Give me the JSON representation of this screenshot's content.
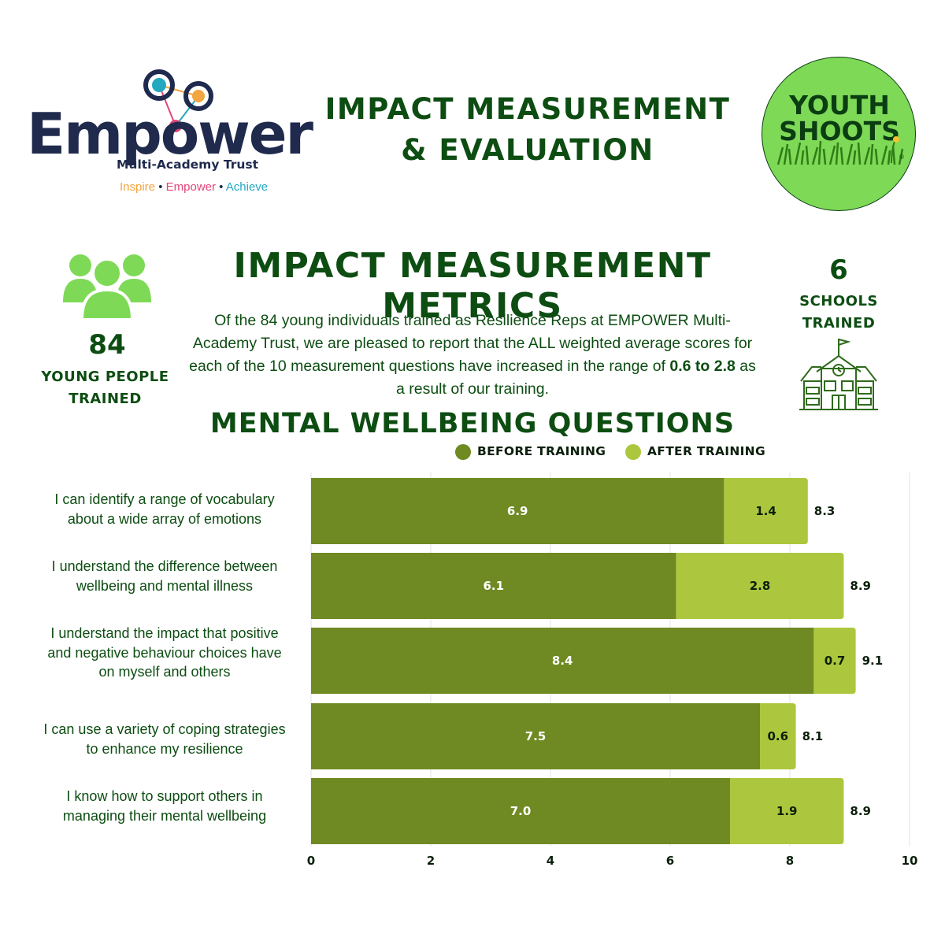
{
  "logo": {
    "word": "Empower",
    "subtitle": "Multi-Academy Trust",
    "tagline": [
      "Inspire",
      "Empower",
      "Achieve"
    ],
    "tagline_separator": "•",
    "colors": {
      "navy": "#1f2a4d",
      "teal": "#23a8bf",
      "orange": "#f2a541",
      "pink": "#e2457a"
    }
  },
  "header": {
    "title_line1": "IMPACT MEASUREMENT",
    "title_line2": "& EVALUATION"
  },
  "badge": {
    "line1": "YOUTH",
    "line2": "SHOOTS",
    "registered_mark": "®",
    "color": "#7ed957"
  },
  "metrics": {
    "title": "IMPACT MEASUREMENT METRICS",
    "body_part1": "Of the 84 young individuals trained as Resilience Reps at EMPOWER Multi-Academy Trust, we are pleased to report that the ALL weighted average scores for each of the 10 measurement questions have increased in the range of ",
    "body_bold": "0.6 to 2.8",
    "body_part2": " as a result of our training.",
    "people_icon": "people-group-icon",
    "young_people_count": "84",
    "young_people_label_line1": "YOUNG PEOPLE",
    "young_people_label_line2": "TRAINED",
    "schools_icon": "school-building-icon",
    "schools_count": "6",
    "schools_label_line1": "SCHOOLS",
    "schools_label_line2": "TRAINED"
  },
  "wellbeing": {
    "title": "MENTAL WELLBEING QUESTIONS"
  },
  "legend": {
    "before": "BEFORE TRAINING",
    "after": "AFTER TRAINING"
  },
  "questions": [
    {
      "line1": "I can identify a range of vocabulary",
      "line2": "about a wide array of emotions",
      "line3": ""
    },
    {
      "line1": "I understand the difference between",
      "line2": "wellbeing and mental illness",
      "line3": ""
    },
    {
      "line1": "I understand the impact that positive",
      "line2": "and negative behaviour choices have",
      "line3": "on myself and others"
    },
    {
      "line1": "I can use a variety of coping strategies",
      "line2": "to enhance my resilience",
      "line3": ""
    },
    {
      "line1": "I know how to support others in",
      "line2": "managing their mental wellbeing",
      "line3": ""
    }
  ],
  "chart_data": {
    "type": "bar",
    "orientation": "horizontal",
    "stacked": true,
    "categories": [
      "I can identify a range of vocabulary about a wide array of emotions",
      "I understand the difference between wellbeing and mental illness",
      "I understand the impact that positive and negative behaviour choices have on myself and others",
      "I can use a variety of coping strategies to enhance my resilience",
      "I know how to support others in managing their mental wellbeing"
    ],
    "series": [
      {
        "name": "BEFORE TRAINING",
        "values": [
          6.9,
          6.1,
          8.4,
          7.5,
          7.0
        ],
        "labels": [
          "6.9",
          "6.1",
          "8.4",
          "7.5",
          "7.0"
        ],
        "color": "#6f8a22",
        "label_color": "#ffffff"
      },
      {
        "name": "AFTER TRAINING",
        "values": [
          1.4,
          2.8,
          0.7,
          0.6,
          1.9
        ],
        "labels": [
          "1.4",
          "2.8",
          "0.7",
          "0.6",
          "1.9"
        ],
        "color": "#acc73d",
        "label_color": "#0b1f0b"
      }
    ],
    "totals": [
      "8.3",
      "8.9",
      "9.1",
      "8.1",
      "8.9"
    ],
    "xlim": [
      0,
      10
    ],
    "xticks": [
      "0",
      "2",
      "4",
      "6",
      "8",
      "10"
    ],
    "grid": "vertical",
    "legend_position": "top-right"
  }
}
